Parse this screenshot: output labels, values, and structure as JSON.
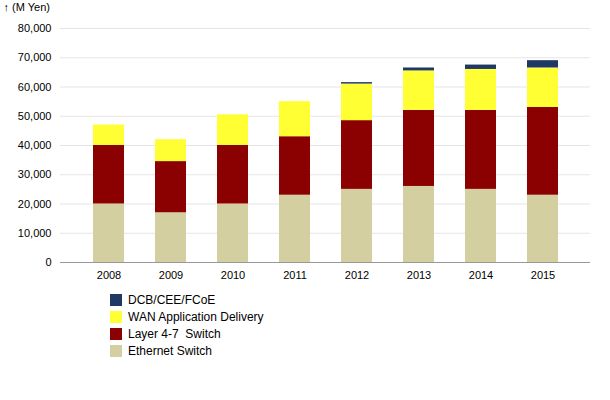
{
  "chart_data": {
    "type": "bar",
    "stacked": true,
    "ylabel": "(M Yen)",
    "categories": [
      "2008",
      "2009",
      "2010",
      "2011",
      "2012",
      "2013",
      "2014",
      "2015"
    ],
    "series": [
      {
        "name": "Ethernet Switch",
        "color": "#d4cfa0",
        "values": [
          20000,
          17000,
          20000,
          23000,
          25000,
          26000,
          25000,
          23000
        ]
      },
      {
        "name": "Layer 4-7  Switch",
        "color": "#8B0000",
        "values": [
          20000,
          17500,
          20000,
          20000,
          23500,
          26000,
          27000,
          30000
        ]
      },
      {
        "name": "WAN Application Delivery",
        "color": "#FFFF33",
        "values": [
          7000,
          7500,
          10500,
          12000,
          12500,
          13500,
          14000,
          13500
        ]
      },
      {
        "name": "DCB/CEE/FCoE",
        "color": "#1F3864",
        "values": [
          0,
          0,
          0,
          0,
          500,
          1000,
          1500,
          2500
        ]
      }
    ],
    "ylim": [
      0,
      80000
    ],
    "yticks": [
      0,
      {
        "value": 10000,
        "label": "10,000"
      },
      {
        "value": 20000,
        "label": "20,000"
      },
      {
        "value": 30000,
        "label": "30,000"
      },
      {
        "value": 40000,
        "label": "40,000"
      },
      {
        "value": 50000,
        "label": "50,000"
      },
      {
        "value": 60000,
        "label": "60,000"
      },
      {
        "value": 70000,
        "label": "70,000"
      },
      {
        "value": 80000,
        "label": "80,000"
      }
    ],
    "grid": true,
    "legend": "bottom"
  }
}
